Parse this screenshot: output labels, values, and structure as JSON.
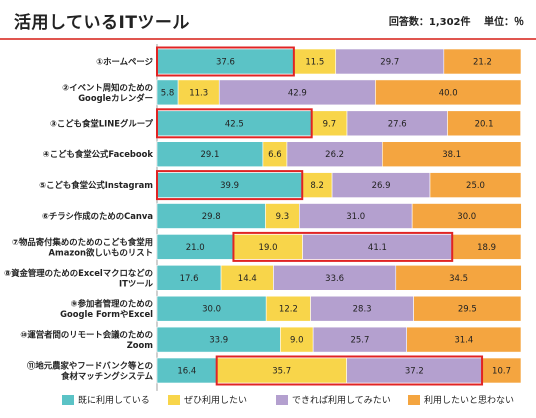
{
  "header": {
    "title": "活用しているITツール",
    "respondents": "回答数：1,302件",
    "unit": "単位：％"
  },
  "chart_data": {
    "type": "bar",
    "orientation": "horizontal-stacked-100",
    "title": "活用しているITツール",
    "categories": [
      [
        "①ホームページ"
      ],
      [
        "②イベント周知のための",
        "Googleカレンダー"
      ],
      [
        "③こども食堂LINEグループ"
      ],
      [
        "④こども食堂公式Facebook"
      ],
      [
        "⑤こども食堂公式Instagram"
      ],
      [
        "⑥チラシ作成のためのCanva"
      ],
      [
        "⑦物品寄付集めのためのこども食堂用",
        "Amazon欲しいものリスト"
      ],
      [
        "⑧資金管理のためのExcelマクロなどの",
        "ITツール"
      ],
      [
        "⑨参加者管理のための",
        "Google FormやExcel"
      ],
      [
        "⑩運営者間のリモート会議のための",
        "Zoom"
      ],
      [
        "⑪地元農家やフードバンク等との",
        "食材マッチングシステム"
      ]
    ],
    "series": [
      {
        "name": "既に利用している",
        "color": "#5bc3c6",
        "values": [
          37.6,
          5.8,
          42.5,
          29.1,
          39.9,
          29.8,
          21.0,
          17.6,
          30.0,
          33.9,
          16.4
        ]
      },
      {
        "name": "ぜひ利用したい",
        "color": "#f8d54a",
        "values": [
          11.5,
          11.3,
          9.7,
          6.6,
          8.2,
          9.3,
          19.0,
          14.4,
          12.2,
          9.0,
          35.7
        ]
      },
      {
        "name": "できれば利用してみたい",
        "color": "#b4a0cf",
        "values": [
          29.7,
          42.9,
          27.6,
          26.2,
          26.9,
          31.0,
          41.1,
          33.6,
          28.3,
          25.7,
          37.2
        ]
      },
      {
        "name": "利用したいと思わない",
        "color": "#f4a540",
        "values": [
          21.2,
          40.0,
          20.1,
          38.1,
          25.0,
          30.0,
          18.9,
          34.5,
          29.5,
          31.4,
          10.7
        ]
      }
    ],
    "highlights": [
      {
        "row": 0,
        "segments": [
          0
        ]
      },
      {
        "row": 2,
        "segments": [
          0
        ]
      },
      {
        "row": 4,
        "segments": [
          0
        ]
      },
      {
        "row": 6,
        "segments": [
          1,
          2
        ]
      },
      {
        "row": 10,
        "segments": [
          1,
          2
        ]
      }
    ],
    "highlight_color": "#e02424",
    "xlim": [
      0,
      100
    ],
    "legend_position": "bottom"
  }
}
